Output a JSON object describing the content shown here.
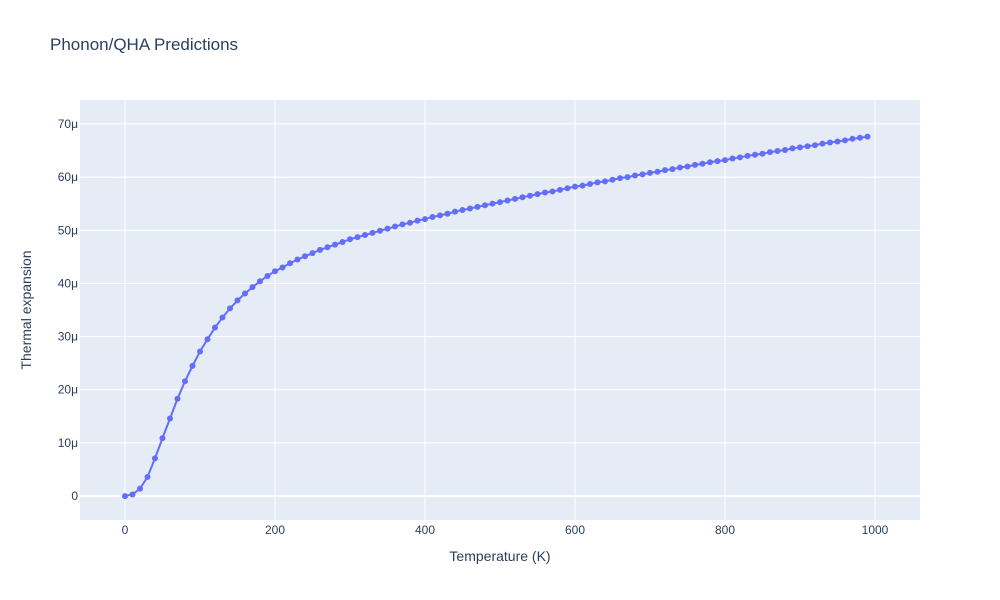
{
  "colors": {
    "plot_bg": "#e5ecf6",
    "grid": "#ffffff",
    "series": "#636efa",
    "text": "#2a3f5f"
  },
  "chart_data": {
    "type": "line",
    "title": "Phonon/QHA Predictions",
    "xlabel": "Temperature (K)",
    "ylabel": "Thermal expansion",
    "xlim": [
      -60,
      1060
    ],
    "ylim": [
      -4.5e-06,
      7.45e-05
    ],
    "x_ticks": [
      0,
      200,
      400,
      600,
      800,
      1000
    ],
    "x_tick_labels": [
      "0",
      "200",
      "400",
      "600",
      "800",
      "1000"
    ],
    "y_ticks": [
      0,
      1e-05,
      2e-05,
      3e-05,
      4e-05,
      5e-05,
      6e-05,
      7e-05
    ],
    "y_tick_labels": [
      "0",
      "10μ",
      "20μ",
      "30μ",
      "40μ",
      "50μ",
      "60μ",
      "70μ"
    ],
    "grid": true,
    "legend": "none",
    "mode": "lines+markers",
    "series": [
      {
        "x": [
          0,
          10,
          20,
          30,
          40,
          50,
          60,
          70,
          80,
          90,
          100,
          110,
          120,
          130,
          140,
          150,
          160,
          170,
          180,
          190,
          200,
          210,
          220,
          230,
          240,
          250,
          260,
          270,
          280,
          290,
          300,
          310,
          320,
          330,
          340,
          350,
          360,
          370,
          380,
          390,
          400,
          410,
          420,
          430,
          440,
          450,
          460,
          470,
          480,
          490,
          500,
          510,
          520,
          530,
          540,
          550,
          560,
          570,
          580,
          590,
          600,
          610,
          620,
          630,
          640,
          650,
          660,
          670,
          680,
          690,
          700,
          710,
          720,
          730,
          740,
          750,
          760,
          770,
          780,
          790,
          800,
          810,
          820,
          830,
          840,
          850,
          860,
          870,
          880,
          890,
          900,
          910,
          920,
          930,
          940,
          950,
          960,
          970,
          980,
          990
        ],
        "y": [
          0,
          3e-07,
          1.4e-06,
          3.6e-06,
          7.1e-06,
          1.09e-05,
          1.46e-05,
          1.83e-05,
          2.16e-05,
          2.45e-05,
          2.72e-05,
          2.95e-05,
          3.17e-05,
          3.36e-05,
          3.53e-05,
          3.68e-05,
          3.81e-05,
          3.93e-05,
          4.04e-05,
          4.14e-05,
          4.23e-05,
          4.3e-05,
          4.38e-05,
          4.45e-05,
          4.51e-05,
          4.57e-05,
          4.63e-05,
          4.68e-05,
          4.73e-05,
          4.78e-05,
          4.83e-05,
          4.87e-05,
          4.91e-05,
          4.95e-05,
          4.99e-05,
          5.03e-05,
          5.07e-05,
          5.11e-05,
          5.14e-05,
          5.18e-05,
          5.21e-05,
          5.25e-05,
          5.28e-05,
          5.31e-05,
          5.35e-05,
          5.38e-05,
          5.41e-05,
          5.44e-05,
          5.47e-05,
          5.5e-05,
          5.53e-05,
          5.56e-05,
          5.59e-05,
          5.62e-05,
          5.65e-05,
          5.68e-05,
          5.71e-05,
          5.73e-05,
          5.76e-05,
          5.79e-05,
          5.82e-05,
          5.84e-05,
          5.87e-05,
          5.9e-05,
          5.92e-05,
          5.95e-05,
          5.98e-05,
          6e-05,
          6.03e-05,
          6.05e-05,
          6.08e-05,
          6.1e-05,
          6.13e-05,
          6.15e-05,
          6.18e-05,
          6.2e-05,
          6.23e-05,
          6.25e-05,
          6.28e-05,
          6.3e-05,
          6.32e-05,
          6.35e-05,
          6.37e-05,
          6.4e-05,
          6.42e-05,
          6.44e-05,
          6.47e-05,
          6.49e-05,
          6.51e-05,
          6.54e-05,
          6.56e-05,
          6.58e-05,
          6.6e-05,
          6.63e-05,
          6.65e-05,
          6.67e-05,
          6.69e-05,
          6.72e-05,
          6.74e-05,
          6.76e-05
        ]
      }
    ]
  }
}
